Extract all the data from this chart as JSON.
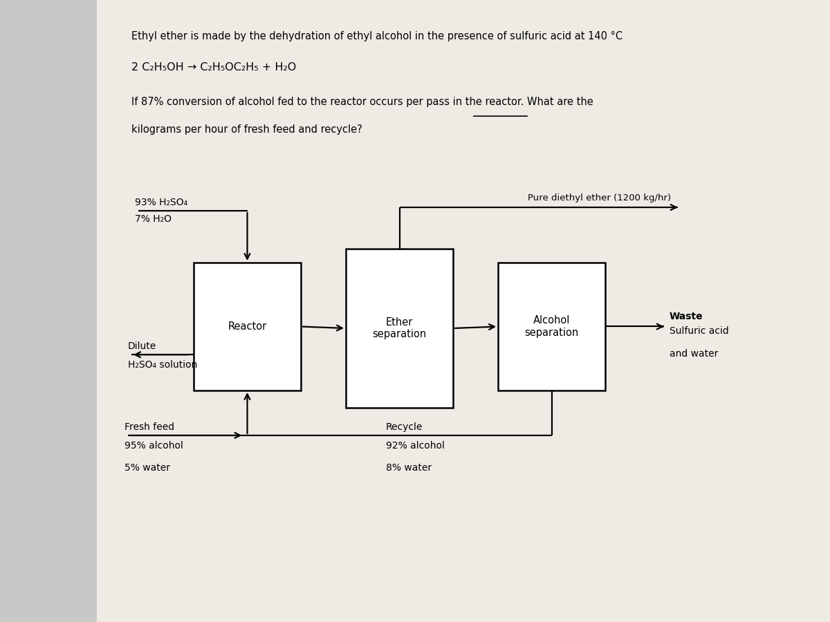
{
  "bg_color": "#c8c8c8",
  "paper_color": "#eeebe5",
  "title1": "Ethyl ether is made by the dehydration of ethyl alcohol in the presence of sulfuric acid at 140 °C",
  "title2": "2 C₂H₅OH → C₂H₅OC₂H₅ + H₂O",
  "title3": "If 87% conversion of alcohol fed to the reactor occurs per pass in the reactor. What are the",
  "title4": "kilograms per hour of fresh feed and recycle?",
  "h2so4_1": "93% H₂SO₄",
  "h2so4_2": "7% H₂O",
  "dilute1": "Dilute",
  "dilute2": "H₂SO₄ solution",
  "fresh_feed": "Fresh feed",
  "ff_comp1": "95% alcohol",
  "ff_comp2": "5% water",
  "recycle": "Recycle",
  "rec_comp1": "92% alcohol",
  "rec_comp2": "8% water",
  "product": "Pure diethyl ether (1200 kg/hr)",
  "waste1": "Waste",
  "waste2": "Sulfuric acid",
  "waste3": "and water",
  "reactor_label": "Reactor",
  "ether_sep_label": "Ether\nseparation",
  "alc_sep_label": "Alcohol\nseparation",
  "lc": "#000000",
  "tc": "#000000",
  "box_fc": "#ffffff"
}
